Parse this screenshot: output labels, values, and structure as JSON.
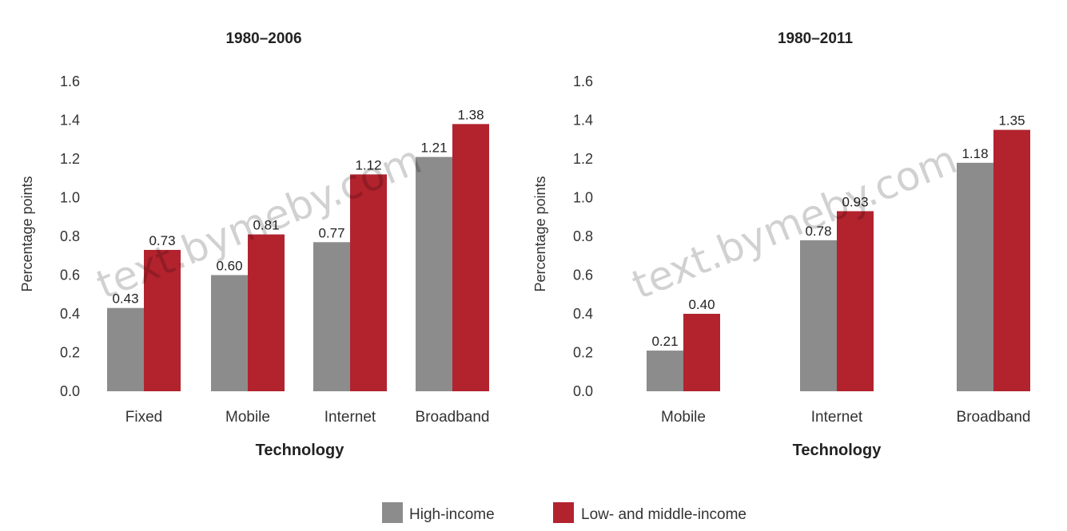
{
  "chart_data": [
    {
      "type": "bar",
      "title": "1980–2006",
      "xlabel": "Technology",
      "ylabel": "Percentage points",
      "ylim": [
        0,
        1.6
      ],
      "yticks": [
        "0.0",
        "0.2",
        "0.4",
        "0.6",
        "0.8",
        "1.0",
        "1.2",
        "1.4",
        "1.6"
      ],
      "categories": [
        "Fixed",
        "Mobile",
        "Internet",
        "Broadband"
      ],
      "series": [
        {
          "name": "High-income",
          "values": [
            0.43,
            0.6,
            0.77,
            1.21
          ],
          "labels": [
            "0.43",
            "0.60",
            "0.77",
            "1.21"
          ]
        },
        {
          "name": "Low- and middle-income",
          "values": [
            0.73,
            0.81,
            1.12,
            1.38
          ],
          "labels": [
            "0.73",
            "0.81",
            "1.12",
            "1.38"
          ]
        }
      ],
      "grid": false
    },
    {
      "type": "bar",
      "title": "1980–2011",
      "xlabel": "Technology",
      "ylabel": "Percentage points",
      "ylim": [
        0,
        1.6
      ],
      "yticks": [
        "0.0",
        "0.2",
        "0.4",
        "0.6",
        "0.8",
        "1.0",
        "1.2",
        "1.4",
        "1.6"
      ],
      "categories": [
        "Mobile",
        "Internet",
        "Broadband"
      ],
      "series": [
        {
          "name": "High-income",
          "values": [
            0.21,
            0.78,
            1.18
          ],
          "labels": [
            "0.21",
            "0.78",
            "1.18"
          ]
        },
        {
          "name": "Low- and middle-income",
          "values": [
            0.4,
            0.93,
            1.35
          ],
          "labels": [
            "0.40",
            "0.93",
            "1.35"
          ]
        }
      ],
      "grid": false
    }
  ],
  "legend": {
    "placement": "bottom-center",
    "items": [
      {
        "label": "High-income",
        "color": "#8c8c8c"
      },
      {
        "label": "Low- and middle-income",
        "color": "#b2232e"
      }
    ]
  },
  "colors": {
    "high_income": "#8c8c8c",
    "low_middle_income": "#b2232e",
    "text": "#222222",
    "axis": "#444444"
  },
  "watermark": "text.bymeby.com"
}
